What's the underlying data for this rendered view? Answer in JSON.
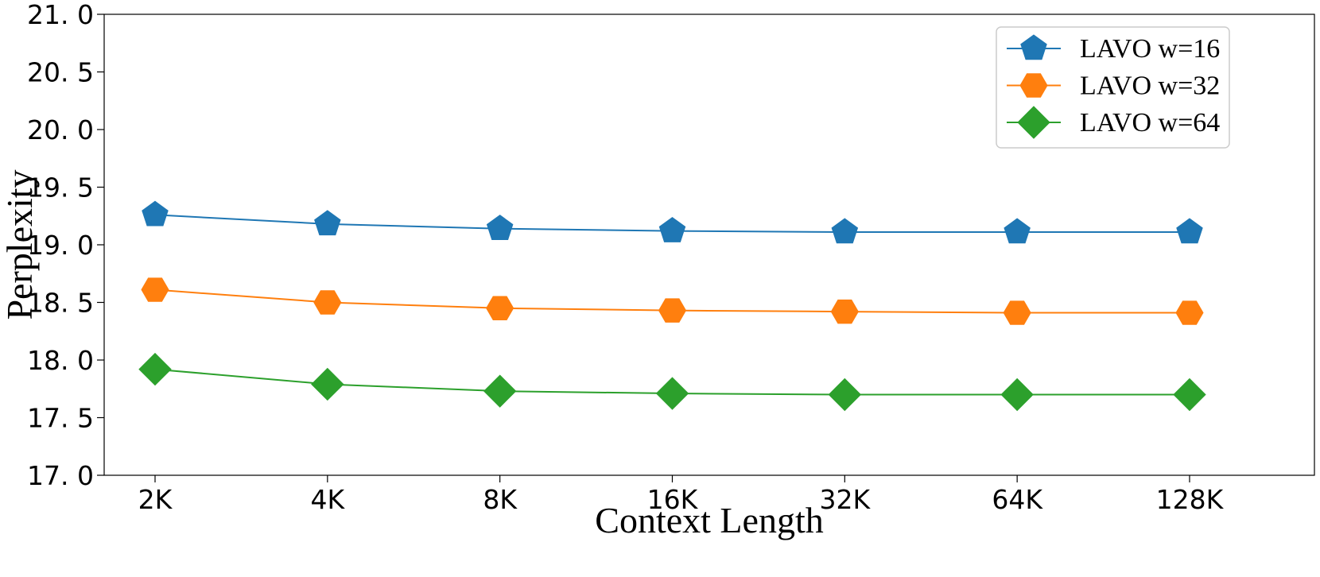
{
  "chart_data": {
    "type": "line",
    "title": "",
    "xlabel": "Context Length",
    "ylabel": "Perplexity",
    "categories": [
      "2K",
      "4K",
      "8K",
      "16K",
      "32K",
      "64K",
      "128K"
    ],
    "ylim": [
      17.0,
      21.0
    ],
    "yticks": [
      "17. 0",
      "17. 5",
      "18. 0",
      "18. 5",
      "19. 0",
      "19. 5",
      "20. 0",
      "20. 5",
      "21. 0"
    ],
    "grid": false,
    "legend_position": "top-right",
    "series": [
      {
        "name": "LAVO w=16",
        "color": "#1f77b4",
        "marker": "pentagon",
        "values": [
          19.26,
          19.18,
          19.14,
          19.12,
          19.11,
          19.11,
          19.11
        ]
      },
      {
        "name": "LAVO w=32",
        "color": "#ff7f0e",
        "marker": "hexagon",
        "values": [
          18.61,
          18.5,
          18.45,
          18.43,
          18.42,
          18.41,
          18.41
        ]
      },
      {
        "name": "LAVO w=64",
        "color": "#2ca02c",
        "marker": "diamond",
        "values": [
          17.92,
          17.79,
          17.73,
          17.71,
          17.7,
          17.7,
          17.7
        ]
      }
    ]
  }
}
